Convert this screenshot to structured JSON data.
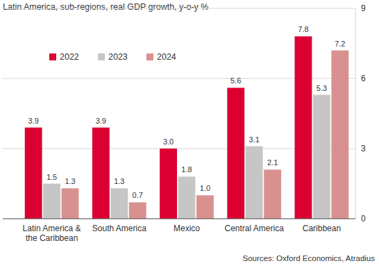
{
  "chart_data": {
    "type": "bar",
    "title": "Latin America, sub-regions, real GDP growth, y-o-y %",
    "categories": [
      "Latin America & the Caribbean",
      "South America",
      "Mexico",
      "Central America",
      "Caribbean"
    ],
    "series": [
      {
        "name": "2022",
        "color": "#dc0032",
        "values": [
          3.9,
          3.9,
          3.0,
          5.6,
          7.8
        ]
      },
      {
        "name": "2023",
        "color": "#c6c6c6",
        "values": [
          1.5,
          1.3,
          1.8,
          3.1,
          5.3
        ]
      },
      {
        "name": "2024",
        "color": "#d9918f",
        "values": [
          1.3,
          0.7,
          1.0,
          2.1,
          7.2
        ]
      }
    ],
    "ylim": [
      0,
      9
    ],
    "yticks": [
      0,
      3,
      6,
      9
    ],
    "grid": true,
    "legend": "top-left",
    "data_labels": true,
    "annotations": [
      "Sources: Oxford Economics, Atradius"
    ]
  }
}
